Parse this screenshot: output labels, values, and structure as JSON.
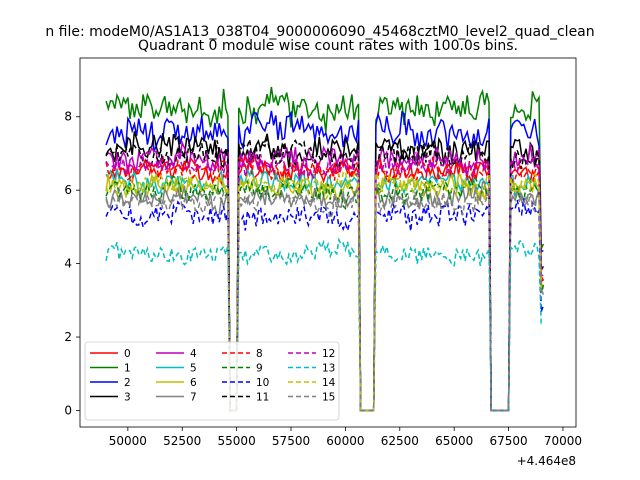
{
  "chart_data": {
    "type": "line",
    "suptitle": "n file: modeM0/AS1A13_038T04_9000006090_45468cztM0_level2_quad_clean",
    "title": "Quadrant 0 module wise count rates with 100.0s bins.",
    "xlabel": "",
    "ylabel": "",
    "x_offset_label": "+4.464e8",
    "xlim": [
      47800,
      70600
    ],
    "ylim": [
      -0.45,
      9.6
    ],
    "x_ticks": [
      50000,
      52500,
      55000,
      57500,
      60000,
      62500,
      65000,
      67500,
      70000
    ],
    "x_tick_labels": [
      "50000",
      "52500",
      "55000",
      "57500",
      "60000",
      "62500",
      "65000",
      "67500",
      "70000"
    ],
    "y_ticks": [
      0,
      2,
      4,
      6,
      8
    ],
    "y_tick_labels": [
      "0",
      "2",
      "4",
      "6",
      "8"
    ],
    "x_start": 49000,
    "x_end": 69100,
    "bin_width": 100,
    "gaps": [
      [
        54700,
        55000
      ],
      [
        60700,
        61300
      ],
      [
        66700,
        67500
      ]
    ],
    "legend_location": "lower left",
    "legend_columns": 4,
    "series": [
      {
        "name": "0",
        "mean": 6.5,
        "noise": 0.22,
        "color": "#ff0000",
        "dash": "solid"
      },
      {
        "name": "1",
        "mean": 8.3,
        "noise": 0.35,
        "color": "#008000",
        "dash": "solid"
      },
      {
        "name": "2",
        "mean": 7.6,
        "noise": 0.32,
        "color": "#0000ff",
        "dash": "solid"
      },
      {
        "name": "3",
        "mean": 7.1,
        "noise": 0.28,
        "color": "#000000",
        "dash": "solid"
      },
      {
        "name": "4",
        "mean": 6.9,
        "noise": 0.25,
        "color": "#bf00bf",
        "dash": "solid"
      },
      {
        "name": "5",
        "mean": 6.2,
        "noise": 0.22,
        "color": "#00bfbf",
        "dash": "solid"
      },
      {
        "name": "6",
        "mean": 6.1,
        "noise": 0.22,
        "color": "#bfbf00",
        "dash": "solid"
      },
      {
        "name": "7",
        "mean": 5.8,
        "noise": 0.22,
        "color": "#808080",
        "dash": "solid"
      },
      {
        "name": "8",
        "mean": 6.6,
        "noise": 0.22,
        "color": "#ff0000",
        "dash": "dashed"
      },
      {
        "name": "9",
        "mean": 6.0,
        "noise": 0.22,
        "color": "#008000",
        "dash": "dashed"
      },
      {
        "name": "10",
        "mean": 5.3,
        "noise": 0.25,
        "color": "#0000ff",
        "dash": "dashed"
      },
      {
        "name": "11",
        "mean": 7.0,
        "noise": 0.25,
        "color": "#000000",
        "dash": "dashed"
      },
      {
        "name": "12",
        "mean": 6.7,
        "noise": 0.22,
        "color": "#bf00bf",
        "dash": "dashed"
      },
      {
        "name": "13",
        "mean": 4.3,
        "noise": 0.2,
        "color": "#00bfbf",
        "dash": "dashed"
      },
      {
        "name": "14",
        "mean": 6.2,
        "noise": 0.22,
        "color": "#bfbf00",
        "dash": "dashed"
      },
      {
        "name": "15",
        "mean": 5.7,
        "noise": 0.22,
        "color": "#808080",
        "dash": "dashed"
      }
    ]
  }
}
